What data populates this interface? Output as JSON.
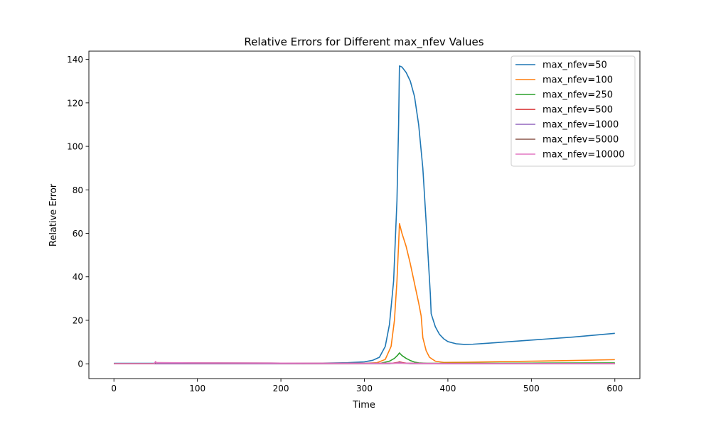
{
  "chart_data": {
    "type": "line",
    "title": "Relative Errors for Different max_nfev Values",
    "xlabel": "Time",
    "ylabel": "Relative Error",
    "xlim": [
      -30,
      630
    ],
    "ylim": [
      -6.8,
      143.8
    ],
    "xticks": [
      0,
      100,
      200,
      300,
      400,
      500,
      600
    ],
    "yticks": [
      0,
      20,
      40,
      60,
      80,
      100,
      120,
      140
    ],
    "grid": false,
    "legend_position": "upper right",
    "series": [
      {
        "name": "max_nfev=50",
        "color": "#1f77b4",
        "points": [
          [
            0,
            0.2
          ],
          [
            100,
            0.2
          ],
          [
            200,
            0.2
          ],
          [
            250,
            0.3
          ],
          [
            280,
            0.5
          ],
          [
            300,
            0.9
          ],
          [
            310,
            1.6
          ],
          [
            318,
            3
          ],
          [
            325,
            8
          ],
          [
            330,
            18
          ],
          [
            335,
            38
          ],
          [
            339,
            75
          ],
          [
            341,
            110
          ],
          [
            342,
            137
          ],
          [
            345,
            136.5
          ],
          [
            350,
            134
          ],
          [
            355,
            130
          ],
          [
            360,
            123
          ],
          [
            365,
            110
          ],
          [
            370,
            90
          ],
          [
            374,
            65
          ],
          [
            377,
            45
          ],
          [
            379,
            32
          ],
          [
            380,
            23
          ],
          [
            385,
            17
          ],
          [
            390,
            13.5
          ],
          [
            395,
            11.5
          ],
          [
            400,
            10.2
          ],
          [
            410,
            9.2
          ],
          [
            420,
            8.9
          ],
          [
            430,
            9.0
          ],
          [
            450,
            9.5
          ],
          [
            500,
            10.9
          ],
          [
            550,
            12.3
          ],
          [
            600,
            14.0
          ]
        ]
      },
      {
        "name": "max_nfev=100",
        "color": "#ff7f0e",
        "points": [
          [
            0,
            0.1
          ],
          [
            100,
            0.1
          ],
          [
            200,
            0.1
          ],
          [
            300,
            0.2
          ],
          [
            315,
            0.5
          ],
          [
            325,
            2
          ],
          [
            332,
            8
          ],
          [
            336,
            20
          ],
          [
            339,
            38
          ],
          [
            341,
            55
          ],
          [
            342,
            64.5
          ],
          [
            345,
            60
          ],
          [
            350,
            54
          ],
          [
            355,
            46
          ],
          [
            360,
            37
          ],
          [
            365,
            28
          ],
          [
            368,
            22
          ],
          [
            370,
            12
          ],
          [
            374,
            6
          ],
          [
            378,
            3
          ],
          [
            385,
            1.2
          ],
          [
            395,
            0.6
          ],
          [
            420,
            0.7
          ],
          [
            450,
            0.9
          ],
          [
            500,
            1.2
          ],
          [
            550,
            1.5
          ],
          [
            600,
            1.9
          ]
        ]
      },
      {
        "name": "max_nfev=250",
        "color": "#2ca02c",
        "points": [
          [
            0,
            0.05
          ],
          [
            200,
            0.05
          ],
          [
            300,
            0.1
          ],
          [
            320,
            0.3
          ],
          [
            330,
            1.2
          ],
          [
            336,
            2.5
          ],
          [
            340,
            4
          ],
          [
            342,
            5.0
          ],
          [
            345,
            3.8
          ],
          [
            350,
            2.5
          ],
          [
            355,
            1.5
          ],
          [
            360,
            0.8
          ],
          [
            365,
            0.4
          ],
          [
            375,
            0.2
          ],
          [
            400,
            0.2
          ],
          [
            500,
            0.3
          ],
          [
            600,
            0.4
          ]
        ]
      },
      {
        "name": "max_nfev=500",
        "color": "#d62728",
        "points": [
          [
            0,
            0.02
          ],
          [
            200,
            0.02
          ],
          [
            330,
            0.1
          ],
          [
            340,
            0.6
          ],
          [
            342,
            0.9
          ],
          [
            346,
            0.5
          ],
          [
            355,
            0.1
          ],
          [
            400,
            0.05
          ],
          [
            500,
            0.06
          ],
          [
            600,
            0.08
          ]
        ]
      },
      {
        "name": "max_nfev=1000",
        "color": "#9467bd",
        "points": [
          [
            0,
            0.02
          ],
          [
            200,
            0.02
          ],
          [
            330,
            0.08
          ],
          [
            340,
            0.4
          ],
          [
            342,
            0.6
          ],
          [
            346,
            0.3
          ],
          [
            355,
            0.08
          ],
          [
            400,
            0.04
          ],
          [
            500,
            0.05
          ],
          [
            600,
            0.06
          ]
        ]
      },
      {
        "name": "max_nfev=5000",
        "color": "#8c564b",
        "points": [
          [
            0,
            0.02
          ],
          [
            48,
            0.02
          ],
          [
            50,
            0.9
          ],
          [
            51,
            0.2
          ],
          [
            52,
            0.5
          ],
          [
            100,
            0.4
          ],
          [
            200,
            0.3
          ],
          [
            300,
            0.2
          ],
          [
            342,
            0.3
          ],
          [
            400,
            0.1
          ],
          [
            500,
            0.1
          ],
          [
            600,
            0.1
          ]
        ]
      },
      {
        "name": "max_nfev=10000",
        "color": "#e377c2",
        "points": [
          [
            0,
            0.02
          ],
          [
            48,
            0.02
          ],
          [
            50,
            1.1
          ],
          [
            51,
            0.3
          ],
          [
            52,
            0.5
          ],
          [
            100,
            0.4
          ],
          [
            200,
            0.3
          ],
          [
            300,
            0.2
          ],
          [
            342,
            0.3
          ],
          [
            400,
            0.1
          ],
          [
            500,
            0.1
          ],
          [
            600,
            0.1
          ]
        ]
      }
    ]
  }
}
